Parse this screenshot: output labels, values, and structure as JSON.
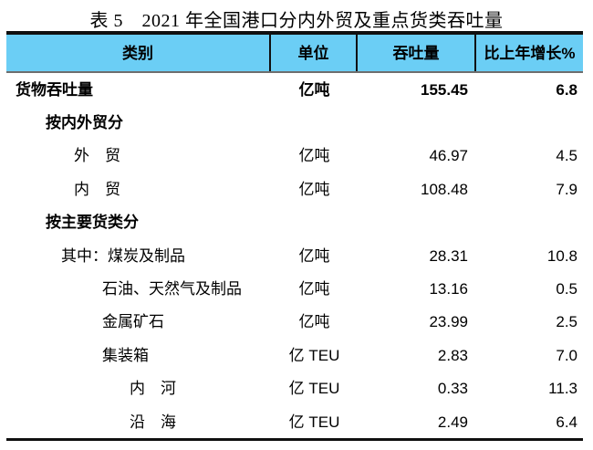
{
  "title": "表 5　2021 年全国港口分内外贸及重点货类吞吐量",
  "colors": {
    "header_bg": "#6BCEF5",
    "rule_line": "#101010",
    "text": "#000000"
  },
  "table": {
    "columns": [
      "类别",
      "单位",
      "吞吐量",
      "比上年增长%"
    ],
    "rows": [
      {
        "label": "货物吞吐量",
        "unit": "亿吨",
        "throughput": "155.45",
        "growth": "6.8"
      },
      {
        "label": "按内外贸分",
        "unit": "",
        "throughput": "",
        "growth": ""
      },
      {
        "label": "外　贸",
        "unit": "亿吨",
        "throughput": "46.97",
        "growth": "4.5"
      },
      {
        "label": "内　贸",
        "unit": "亿吨",
        "throughput": "108.48",
        "growth": "7.9"
      },
      {
        "label": "按主要货类分",
        "unit": "",
        "throughput": "",
        "growth": ""
      },
      {
        "label": "其中：煤炭及制品",
        "unit": "亿吨",
        "throughput": "28.31",
        "growth": "10.8"
      },
      {
        "label": "石油、天然气及制品",
        "unit": "亿吨",
        "throughput": "13.16",
        "growth": "0.5"
      },
      {
        "label": "金属矿石",
        "unit": "亿吨",
        "throughput": "23.99",
        "growth": "2.5"
      },
      {
        "label": "集装箱",
        "unit": "亿 TEU",
        "throughput": "2.83",
        "growth": "7.0"
      },
      {
        "label": "内　河",
        "unit": "亿 TEU",
        "throughput": "0.33",
        "growth": "11.3"
      },
      {
        "label": "沿　海",
        "unit": "亿 TEU",
        "throughput": "2.49",
        "growth": "6.4"
      }
    ]
  }
}
